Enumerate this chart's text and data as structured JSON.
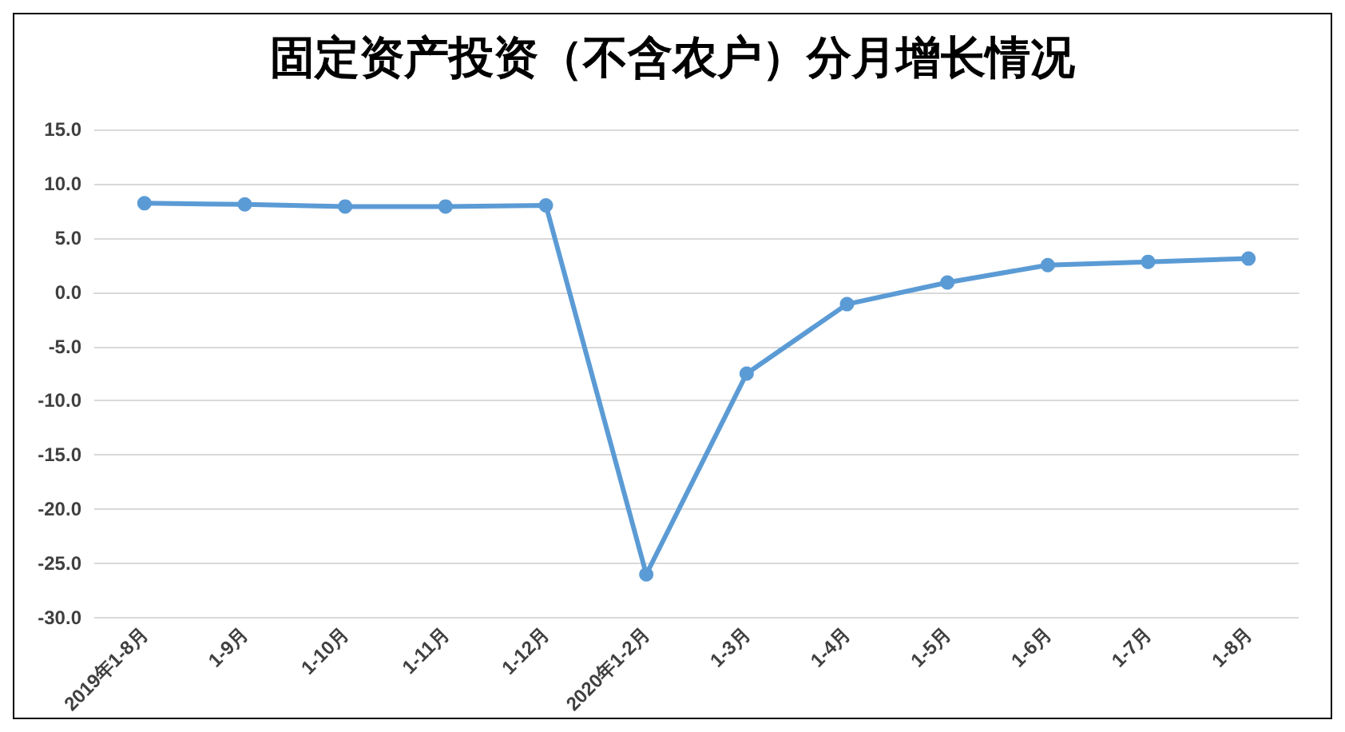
{
  "chart_data": {
    "type": "line",
    "title": "固定资产投资（不含农户）分月增长情况",
    "categories": [
      "2019年1-8月",
      "1-9月",
      "1-10月",
      "1-11月",
      "1-12月",
      "2020年1-2月",
      "1-3月",
      "1-4月",
      "1-5月",
      "1-6月",
      "1-7月",
      "1-8月"
    ],
    "series": [
      {
        "color": "#5b9bd5",
        "values": [
          8.2,
          8.1,
          7.9,
          7.9,
          8.0,
          -26.0,
          -7.5,
          -1.1,
          0.9,
          2.5,
          2.8,
          3.1
        ]
      }
    ],
    "ylim": [
      -30,
      15
    ],
    "yticks": [
      {
        "value": -30,
        "label": "-30.0"
      },
      {
        "value": -25,
        "label": "-25.0"
      },
      {
        "value": -20,
        "label": "-20.0"
      },
      {
        "value": -15,
        "label": "-15.0"
      },
      {
        "value": -10,
        "label": "-10.0"
      },
      {
        "value": -5,
        "label": "-5.0"
      },
      {
        "value": 0,
        "label": "0.0"
      },
      {
        "value": 5,
        "label": "5.0"
      },
      {
        "value": 10,
        "label": "10.0"
      },
      {
        "value": 15,
        "label": "15.0"
      }
    ],
    "grid": "y",
    "marker": "circle",
    "line_style": "solid"
  }
}
